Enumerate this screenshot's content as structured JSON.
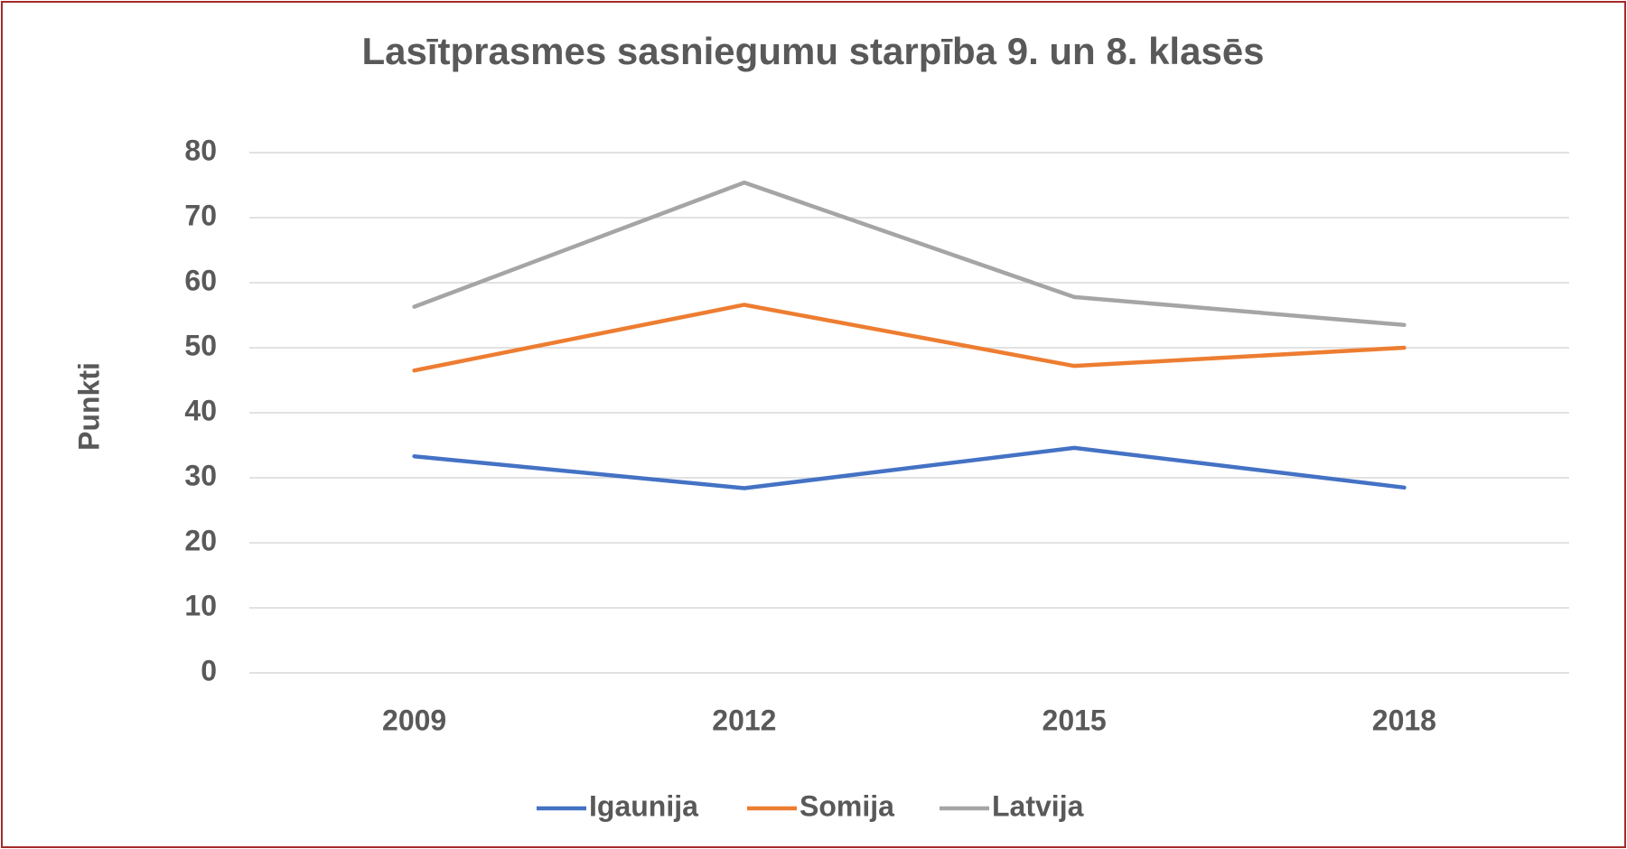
{
  "chart_data": {
    "type": "line",
    "title": "Lasītprasmes sasniegumu starpība 9. un 8. klasēs",
    "ylabel": "Punkti",
    "categories": [
      "2009",
      "2012",
      "2015",
      "2018"
    ],
    "series": [
      {
        "name": "Igaunija",
        "color": "#4472c4",
        "values": [
          33.3,
          28.4,
          34.6,
          28.5
        ]
      },
      {
        "name": "Somija",
        "color": "#ed7d31",
        "values": [
          46.5,
          56.6,
          47.2,
          50.0
        ]
      },
      {
        "name": "Latvija",
        "color": "#a5a5a5",
        "values": [
          56.3,
          75.4,
          57.8,
          53.5
        ]
      }
    ],
    "ylim": [
      0,
      80
    ],
    "yticks": [
      0,
      10,
      20,
      30,
      40,
      50,
      60,
      70,
      80
    ],
    "grid": true,
    "legend": "bottom"
  }
}
